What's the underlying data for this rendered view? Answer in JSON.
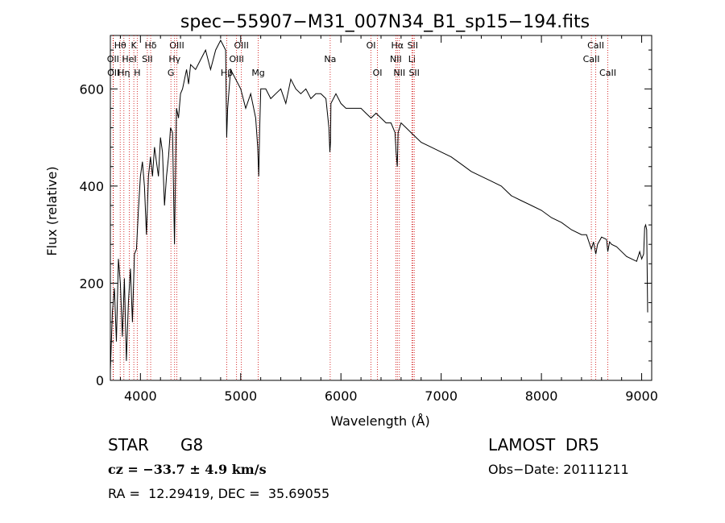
{
  "chart_data": {
    "type": "line",
    "title": "spec−55907−M31_007N34_B1_sp15−194.fits",
    "xlabel": "Wavelength (Å)",
    "ylabel": "Flux (relative)",
    "xlim": [
      3700,
      9100
    ],
    "ylim": [
      0,
      710
    ],
    "x_ticks": [
      4000,
      5000,
      6000,
      7000,
      8000,
      9000
    ],
    "x_tick_labels": [
      "4000",
      "5000",
      "6000",
      "7000",
      "8000",
      "9000"
    ],
    "y_ticks": [
      0,
      200,
      400,
      600
    ],
    "y_tick_labels": [
      "0",
      "200",
      "400",
      "600"
    ],
    "grid": false,
    "series": [
      {
        "x": [
          3700,
          3720,
          3740,
          3760,
          3780,
          3800,
          3820,
          3840,
          3860,
          3880,
          3900,
          3920,
          3940,
          3960,
          3980,
          4000,
          4020,
          4040,
          4060,
          4080,
          4100,
          4120,
          4140,
          4160,
          4180,
          4200,
          4220,
          4240,
          4260,
          4280,
          4300,
          4320,
          4340,
          4360,
          4380,
          4400,
          4420,
          4440,
          4460,
          4480,
          4500,
          4550,
          4600,
          4650,
          4700,
          4750,
          4800,
          4850,
          4860,
          4870,
          4900,
          4950,
          5000,
          5050,
          5100,
          5150,
          5170,
          5180,
          5190,
          5200,
          5250,
          5300,
          5350,
          5400,
          5450,
          5500,
          5550,
          5600,
          5650,
          5700,
          5750,
          5800,
          5850,
          5880,
          5890,
          5896,
          5900,
          5950,
          6000,
          6050,
          6100,
          6150,
          6200,
          6250,
          6300,
          6350,
          6400,
          6450,
          6500,
          6540,
          6550,
          6562,
          6570,
          6600,
          6650,
          6700,
          6800,
          6900,
          7000,
          7100,
          7200,
          7300,
          7400,
          7500,
          7600,
          7700,
          7800,
          7900,
          8000,
          8100,
          8200,
          8300,
          8400,
          8450,
          8498,
          8520,
          8542,
          8560,
          8600,
          8650,
          8662,
          8680,
          8700,
          8750,
          8800,
          8850,
          8900,
          8950,
          8980,
          9000,
          9020,
          9030,
          9040,
          9050,
          9060
        ],
        "y": [
          20,
          140,
          190,
          80,
          250,
          200,
          90,
          210,
          40,
          160,
          230,
          120,
          260,
          270,
          350,
          420,
          450,
          400,
          300,
          420,
          460,
          420,
          480,
          450,
          420,
          500,
          470,
          360,
          420,
          460,
          520,
          510,
          280,
          560,
          540,
          590,
          600,
          620,
          640,
          610,
          650,
          640,
          660,
          680,
          640,
          680,
          700,
          680,
          500,
          560,
          640,
          620,
          600,
          560,
          590,
          540,
          480,
          420,
          520,
          600,
          600,
          580,
          590,
          600,
          570,
          620,
          600,
          590,
          600,
          580,
          590,
          590,
          580,
          520,
          470,
          490,
          570,
          590,
          570,
          560,
          560,
          560,
          560,
          550,
          540,
          550,
          540,
          530,
          530,
          510,
          470,
          440,
          510,
          530,
          520,
          510,
          490,
          480,
          470,
          460,
          445,
          430,
          420,
          410,
          400,
          380,
          370,
          360,
          350,
          335,
          325,
          310,
          300,
          300,
          270,
          285,
          260,
          280,
          295,
          290,
          265,
          285,
          280,
          275,
          265,
          255,
          250,
          245,
          265,
          250,
          260,
          315,
          320,
          310,
          140
        ]
      }
    ],
    "line_markers": [
      {
        "label": "Hθ",
        "x": 3798,
        "row": 0
      },
      {
        "label": "OII",
        "x": 3727,
        "row": 1
      },
      {
        "label": "OII",
        "x": 3730,
        "row": 2
      },
      {
        "label": "K",
        "x": 3934,
        "row": 0
      },
      {
        "label": "HeI",
        "x": 3889,
        "row": 1
      },
      {
        "label": "Hη",
        "x": 3835,
        "row": 2
      },
      {
        "label": "Hδ",
        "x": 4102,
        "row": 0
      },
      {
        "label": "SII",
        "x": 4069,
        "row": 1
      },
      {
        "label": "H",
        "x": 3968,
        "row": 2
      },
      {
        "label": "OIII",
        "x": 4363,
        "row": 0
      },
      {
        "label": "Hγ",
        "x": 4341,
        "row": 1
      },
      {
        "label": "G",
        "x": 4304,
        "row": 2
      },
      {
        "label": "OIII",
        "x": 5007,
        "row": 0
      },
      {
        "label": "OIII",
        "x": 4959,
        "row": 1
      },
      {
        "label": "Hβ",
        "x": 4861,
        "row": 2
      },
      {
        "label": "Mg",
        "x": 5175,
        "row": 2
      },
      {
        "label": "Na",
        "x": 5893,
        "row": 1
      },
      {
        "label": "OI",
        "x": 6300,
        "row": 0
      },
      {
        "label": "OI",
        "x": 6364,
        "row": 2
      },
      {
        "label": "Hα",
        "x": 6563,
        "row": 0
      },
      {
        "label": "NII",
        "x": 6548,
        "row": 1
      },
      {
        "label": "NII",
        "x": 6583,
        "row": 2
      },
      {
        "label": "SII",
        "x": 6716,
        "row": 0
      },
      {
        "label": "Li",
        "x": 6708,
        "row": 1
      },
      {
        "label": "SII",
        "x": 6731,
        "row": 2
      },
      {
        "label": "CaII",
        "x": 8542,
        "row": 0
      },
      {
        "label": "CaII",
        "x": 8498,
        "row": 1
      },
      {
        "label": "CaII",
        "x": 8662,
        "row": 2
      }
    ],
    "line_color": "#cc0000"
  },
  "info": {
    "object_class": "STAR",
    "subclass": "G8",
    "survey": "LAMOST  DR5",
    "cz": "cz = −33.7 ± 4.9 km/s",
    "obs_date": "Obs−Date: 20111211",
    "coords": "RA =  12.29419, DEC =  35.69055"
  }
}
